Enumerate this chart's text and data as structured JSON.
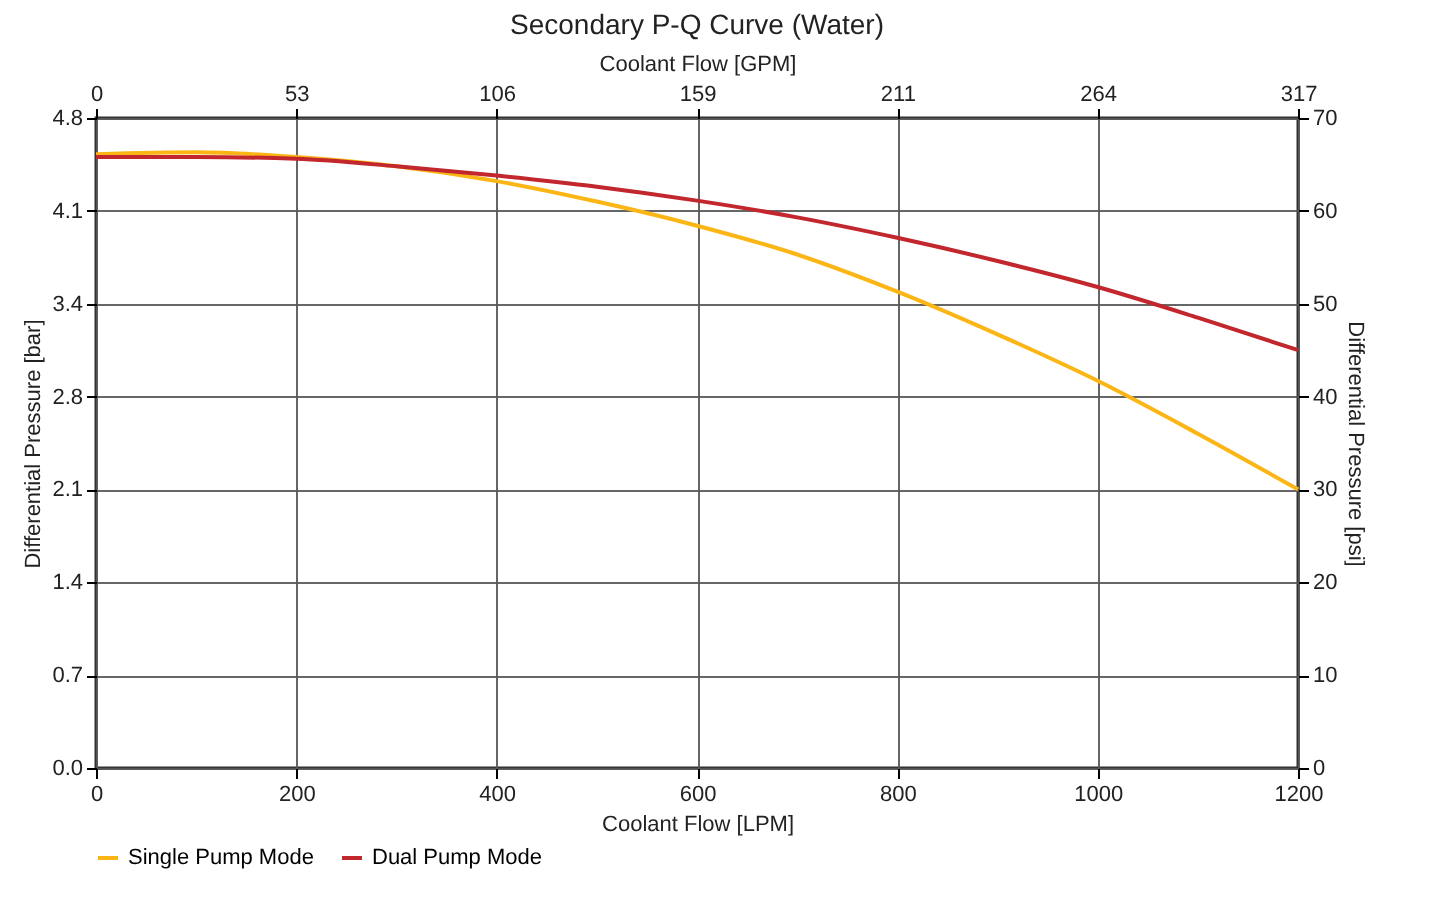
{
  "chart_data": {
    "type": "line",
    "title": "Secondary P-Q Curve (Water)",
    "xlabel": "Coolant Flow [LPM]",
    "x2label": "Coolant Flow [GPM]",
    "ylabel": "Differential Pressure [bar]",
    "y2label": "Differential Pressure [psi]",
    "xlim": [
      0,
      1200
    ],
    "xticks": [
      0,
      200,
      400,
      600,
      800,
      1000,
      1200
    ],
    "x2lim": [
      0,
      317
    ],
    "x2ticks": [
      0,
      {
        "value": 52.83,
        "label": "53"
      },
      {
        "value": 105.67,
        "label": "106"
      },
      {
        "value": 158.5,
        "label": "159"
      },
      {
        "value": 211.34,
        "label": "211"
      },
      {
        "value": 264.17,
        "label": "264"
      },
      317
    ],
    "ylim": [
      0,
      4.83
    ],
    "yticks": [
      {
        "value": 0,
        "label": "0.0"
      },
      {
        "value": 0.69,
        "label": "0.7"
      },
      {
        "value": 1.38,
        "label": "1.4"
      },
      {
        "value": 2.07,
        "label": "2.1"
      },
      {
        "value": 2.76,
        "label": "2.8"
      },
      {
        "value": 3.45,
        "label": "3.4"
      },
      {
        "value": 4.14,
        "label": "4.1"
      },
      {
        "value": 4.83,
        "label": "4.8"
      }
    ],
    "y2lim": [
      0,
      70
    ],
    "y2ticks": [
      0,
      10,
      20,
      30,
      40,
      50,
      60,
      70
    ],
    "grid": true,
    "legend": "bottom",
    "line_style": "solid",
    "marker": "none",
    "series": [
      {
        "name": "Single Pump Mode",
        "color": "#fbb515",
        "axis": "y2",
        "x": [
          0,
          100,
          200,
          300,
          400,
          500,
          600,
          700,
          800,
          900,
          1000,
          1100,
          1200
        ],
        "values": [
          66.1,
          66.3,
          65.8,
          64.8,
          63.2,
          61.0,
          58.4,
          55.3,
          51.3,
          46.7,
          41.7,
          36.0,
          30.0
        ]
      },
      {
        "name": "Dual Pump Mode",
        "color": "#c1272d",
        "axis": "y2",
        "x": [
          0,
          100,
          200,
          300,
          400,
          500,
          600,
          700,
          800,
          900,
          1000,
          1100,
          1200
        ],
        "values": [
          65.8,
          65.8,
          65.6,
          64.8,
          63.8,
          62.6,
          61.1,
          59.3,
          57.1,
          54.6,
          51.8,
          48.5,
          45.0
        ]
      }
    ]
  }
}
